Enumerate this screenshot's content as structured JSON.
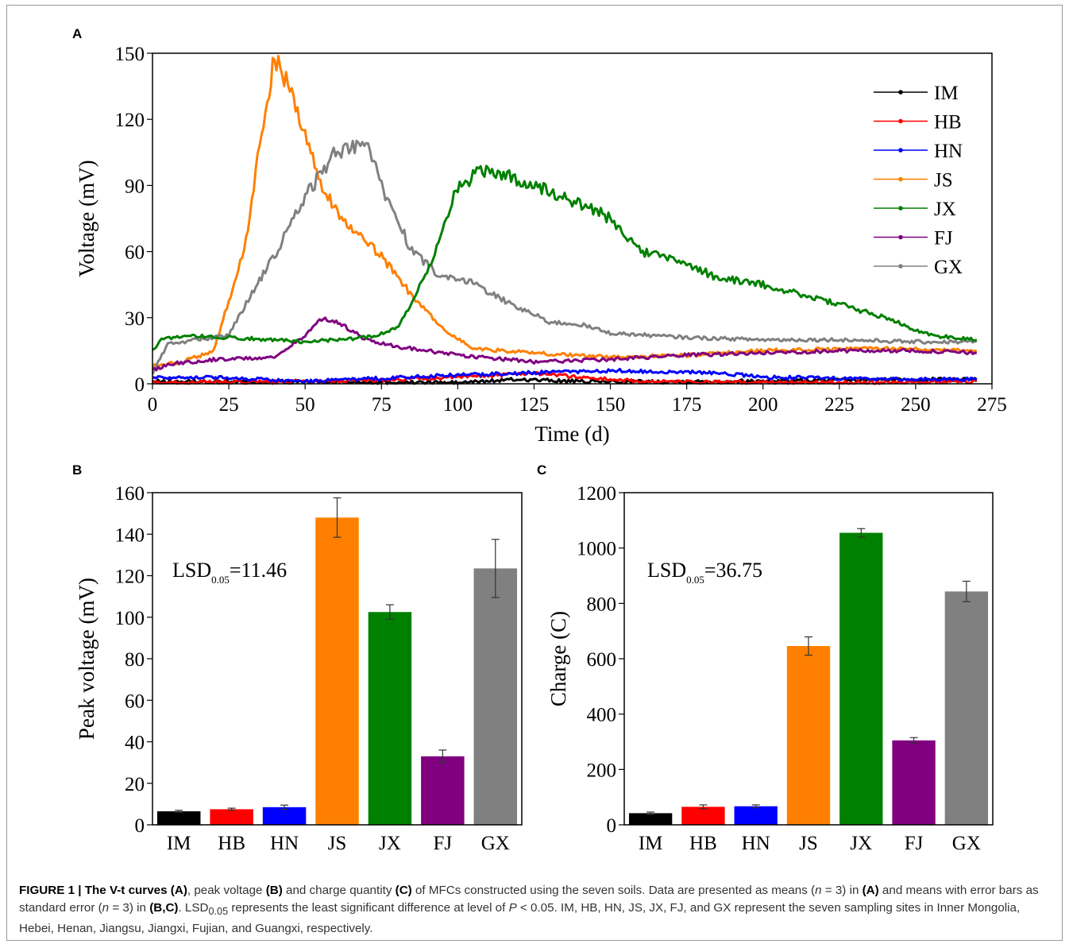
{
  "panels": {
    "a": "A",
    "b": "B",
    "c": "C"
  },
  "colors": {
    "IM": "#000000",
    "HB": "#ff0000",
    "HN": "#0000ff",
    "JS": "#ff8000",
    "JX": "#008000",
    "FJ": "#800080",
    "GX": "#808080"
  },
  "chart_data": [
    {
      "type": "line",
      "panel": "A",
      "xlabel": "Time (d)",
      "ylabel": "Voltage (mV)",
      "xlim": [
        0,
        275
      ],
      "ylim": [
        0,
        150
      ],
      "xticks": [
        0,
        25,
        50,
        75,
        100,
        125,
        150,
        175,
        200,
        225,
        250,
        275
      ],
      "yticks": [
        0,
        30,
        60,
        90,
        120,
        150
      ],
      "legend_position": "top-right",
      "series": [
        {
          "name": "IM",
          "points": [
            [
              0,
              1
            ],
            [
              50,
              1
            ],
            [
              100,
              0.5
            ],
            [
              120,
              2
            ],
            [
              140,
              1
            ],
            [
              180,
              1
            ],
            [
              250,
              2
            ],
            [
              270,
              2
            ]
          ]
        },
        {
          "name": "HB",
          "points": [
            [
              0,
              0.5
            ],
            [
              60,
              1
            ],
            [
              100,
              3
            ],
            [
              125,
              5
            ],
            [
              140,
              3
            ],
            [
              160,
              1
            ],
            [
              200,
              0.5
            ],
            [
              270,
              1
            ]
          ]
        },
        {
          "name": "HN",
          "points": [
            [
              0,
              3
            ],
            [
              20,
              3
            ],
            [
              50,
              1
            ],
            [
              100,
              4
            ],
            [
              125,
              5
            ],
            [
              150,
              6
            ],
            [
              185,
              5
            ],
            [
              200,
              3
            ],
            [
              250,
              2
            ],
            [
              270,
              2
            ]
          ]
        },
        {
          "name": "JS",
          "points": [
            [
              0,
              8
            ],
            [
              10,
              10
            ],
            [
              20,
              15
            ],
            [
              30,
              60
            ],
            [
              37,
              125
            ],
            [
              40,
              148
            ],
            [
              45,
              135
            ],
            [
              55,
              90
            ],
            [
              65,
              70
            ],
            [
              75,
              58
            ],
            [
              85,
              40
            ],
            [
              95,
              25
            ],
            [
              105,
              16
            ],
            [
              125,
              14
            ],
            [
              150,
              12
            ],
            [
              175,
              13
            ],
            [
              200,
              15
            ],
            [
              225,
              16
            ],
            [
              250,
              16
            ],
            [
              270,
              15
            ]
          ]
        },
        {
          "name": "JX",
          "points": [
            [
              0,
              15
            ],
            [
              3,
              20
            ],
            [
              10,
              22
            ],
            [
              25,
              21
            ],
            [
              40,
              20
            ],
            [
              50,
              19
            ],
            [
              70,
              21
            ],
            [
              80,
              25
            ],
            [
              90,
              50
            ],
            [
              100,
              90
            ],
            [
              110,
              98
            ],
            [
              125,
              90
            ],
            [
              140,
              82
            ],
            [
              150,
              75
            ],
            [
              160,
              60
            ],
            [
              175,
              55
            ],
            [
              185,
              48
            ],
            [
              200,
              45
            ],
            [
              220,
              38
            ],
            [
              240,
              30
            ],
            [
              255,
              22
            ],
            [
              270,
              20
            ]
          ]
        },
        {
          "name": "FJ",
          "points": [
            [
              0,
              6
            ],
            [
              5,
              9
            ],
            [
              20,
              11
            ],
            [
              40,
              12
            ],
            [
              50,
              22
            ],
            [
              56,
              30
            ],
            [
              62,
              27
            ],
            [
              70,
              20
            ],
            [
              80,
              17
            ],
            [
              100,
              13
            ],
            [
              125,
              10
            ],
            [
              150,
              11
            ],
            [
              175,
              13
            ],
            [
              200,
              14
            ],
            [
              225,
              15
            ],
            [
              250,
              15
            ],
            [
              270,
              14
            ]
          ]
        },
        {
          "name": "GX",
          "points": [
            [
              0,
              5
            ],
            [
              5,
              18
            ],
            [
              15,
              20
            ],
            [
              25,
              22
            ],
            [
              32,
              40
            ],
            [
              40,
              58
            ],
            [
              50,
              85
            ],
            [
              60,
              105
            ],
            [
              70,
              110
            ],
            [
              75,
              90
            ],
            [
              85,
              60
            ],
            [
              95,
              48
            ],
            [
              105,
              46
            ],
            [
              115,
              38
            ],
            [
              130,
              28
            ],
            [
              140,
              27
            ],
            [
              150,
              23
            ],
            [
              175,
              21
            ],
            [
              200,
              20
            ],
            [
              225,
              20
            ],
            [
              250,
              19
            ],
            [
              270,
              19
            ]
          ]
        }
      ]
    },
    {
      "type": "bar",
      "panel": "B",
      "ylabel": "Peak voltage (mV)",
      "ylim": [
        0,
        160
      ],
      "yticks": [
        0,
        20,
        40,
        60,
        80,
        100,
        120,
        140,
        160
      ],
      "categories": [
        "IM",
        "HB",
        "HN",
        "JS",
        "JX",
        "FJ",
        "GX"
      ],
      "values": [
        6.5,
        7.5,
        8.5,
        148,
        102.5,
        33,
        123.5
      ],
      "errors": [
        0.5,
        0.5,
        1,
        9.5,
        3.5,
        3,
        14
      ],
      "annotation": {
        "text": "LSD",
        "subscript": "0.05",
        "value": "=11.46"
      }
    },
    {
      "type": "bar",
      "panel": "C",
      "ylabel": "Charge (C)",
      "ylim": [
        0,
        1200
      ],
      "yticks": [
        0,
        200,
        400,
        600,
        800,
        1000,
        1200
      ],
      "categories": [
        "IM",
        "HB",
        "HN",
        "JS",
        "JX",
        "FJ",
        "GX"
      ],
      "values": [
        42,
        65,
        67,
        646,
        1055,
        305,
        843
      ],
      "errors": [
        4,
        7,
        5,
        33,
        15,
        10,
        37
      ],
      "annotation": {
        "text": "LSD",
        "subscript": "0.05",
        "value": "=36.75"
      }
    }
  ],
  "caption": {
    "fig_label": "FIGURE 1 | The V-t curves",
    "ref_a1": "(A)",
    "t1": ", peak voltage ",
    "ref_b1": "(B)",
    "t2": " and charge quantity ",
    "ref_c1": "(C)",
    "t3": " of MFCs constructed using the seven soils. Data are presented as means (",
    "n1": "n",
    "t4": " = 3) in ",
    "ref_a2": "(A)",
    "t5": " and means with error bars as standard error (",
    "n2": "n",
    "t6": " = 3) in ",
    "ref_bc": "(B,C)",
    "t7": ". LSD",
    "sub": "0.05",
    "t8": " represents the least significant difference at level of ",
    "p": "P",
    "t9": " < 0.05. IM, HB, HN, JS, JX, FJ, and GX represent the seven sampling sites in Inner Mongolia, Hebei, Henan, Jiangsu, Jiangxi, Fujian, and Guangxi, respectively."
  }
}
